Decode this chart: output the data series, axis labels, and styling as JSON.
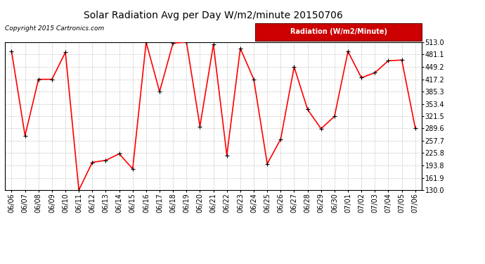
{
  "title": "Solar Radiation Avg per Day W/m2/minute 20150706",
  "copyright": "Copyright 2015 Cartronics.com",
  "legend_label": "Radiation (W/m2/Minute)",
  "dates": [
    "06/06",
    "06/07",
    "06/08",
    "06/09",
    "06/10",
    "06/11",
    "06/12",
    "06/13",
    "06/14",
    "06/15",
    "06/16",
    "06/17",
    "06/18",
    "06/19",
    "06/20",
    "06/21",
    "06/22",
    "06/23",
    "06/24",
    "06/25",
    "06/26",
    "06/27",
    "06/28",
    "06/29",
    "06/30",
    "07/01",
    "07/02",
    "07/03",
    "07/04",
    "07/05",
    "07/06"
  ],
  "values": [
    489.0,
    271.0,
    417.0,
    417.0,
    487.0,
    130.0,
    202.0,
    207.0,
    224.0,
    185.0,
    513.0,
    385.0,
    511.0,
    513.0,
    295.0,
    507.0,
    220.0,
    497.0,
    417.0,
    198.0,
    262.0,
    449.0,
    339.0,
    289.0,
    321.0,
    489.0,
    421.0,
    434.0,
    465.0,
    467.0,
    291.0
  ],
  "ymin": 130.0,
  "ymax": 513.0,
  "yticks": [
    130.0,
    161.9,
    193.8,
    225.8,
    257.7,
    289.6,
    321.5,
    353.4,
    385.3,
    417.2,
    449.2,
    481.1,
    513.0
  ],
  "line_color": "#ff0000",
  "marker_color": "#000000",
  "bg_color": "#ffffff",
  "plot_bg_color": "#ffffff",
  "grid_color": "#b0b0b0",
  "title_fontsize": 10,
  "copyright_fontsize": 6.5,
  "tick_fontsize": 7,
  "legend_bg": "#cc0000",
  "legend_text_color": "#ffffff",
  "legend_fontsize": 7
}
